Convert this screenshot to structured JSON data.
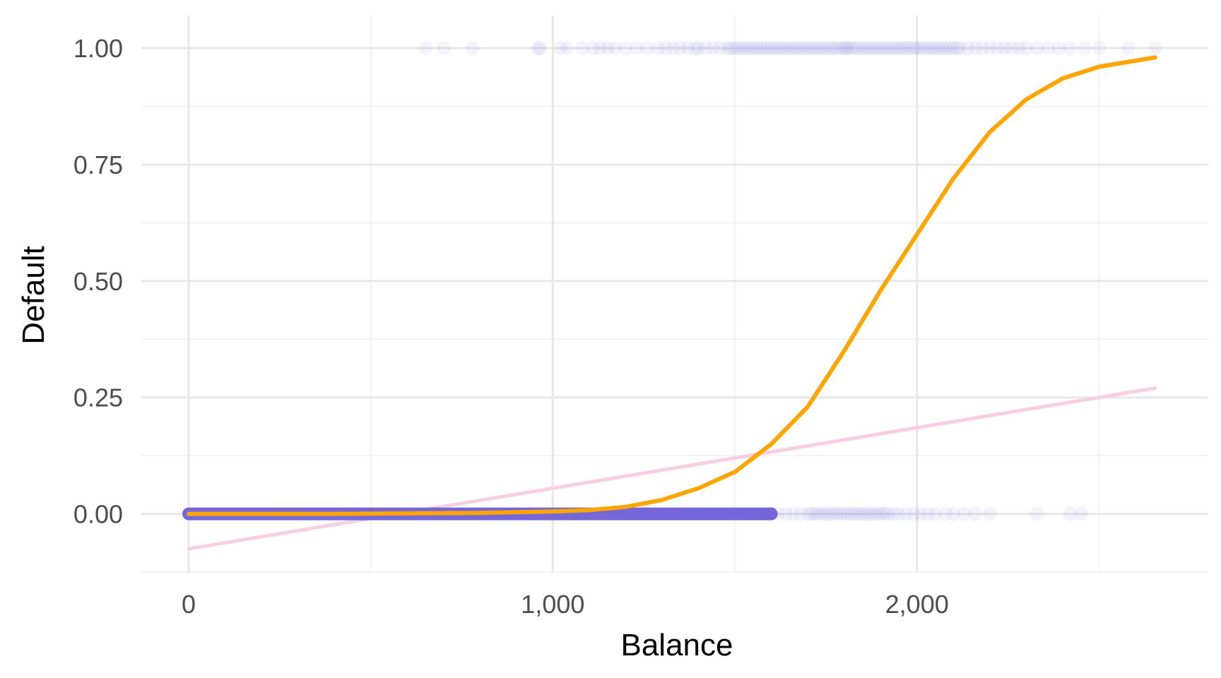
{
  "chart_data": {
    "type": "scatter",
    "title": "",
    "xlabel": "Balance",
    "ylabel": "Default",
    "xlim": [
      -130,
      2800
    ],
    "ylim": [
      -0.125,
      1.07
    ],
    "x_ticks": [
      0,
      1000,
      2000
    ],
    "x_tick_labels": [
      "0",
      "1,000",
      "2,000"
    ],
    "x_minor_ticks": [
      500,
      1500,
      2500
    ],
    "y_ticks": [
      0,
      0.25,
      0.5,
      0.75,
      1.0
    ],
    "y_tick_labels": [
      "0.00",
      "0.25",
      "0.50",
      "0.75",
      "1.00"
    ],
    "y_minor_ticks": [
      -0.125,
      0.125,
      0.375,
      0.625,
      0.875
    ],
    "grid": true,
    "legend": "none",
    "series": [
      {
        "kind": "points",
        "color": "#7566d9",
        "opacity": 0.08,
        "points_default_1": [
          652,
          700,
          780,
          960,
          965,
          1020,
          1040,
          1080,
          1110,
          1130,
          1150,
          1170,
          1200,
          1230,
          1260,
          1290,
          1310,
          1330,
          1350,
          1370,
          1390,
          1400,
          1420,
          1440,
          1460,
          1480,
          1490,
          1500,
          1510,
          1520,
          1530,
          1540,
          1550,
          1560,
          1570,
          1580,
          1590,
          1600,
          1610,
          1620,
          1630,
          1640,
          1650,
          1660,
          1670,
          1680,
          1690,
          1700,
          1710,
          1720,
          1730,
          1740,
          1750,
          1760,
          1770,
          1780,
          1790,
          1800,
          1805,
          1810,
          1820,
          1830,
          1840,
          1850,
          1860,
          1870,
          1880,
          1890,
          1900,
          1910,
          1920,
          1930,
          1940,
          1950,
          1960,
          1970,
          1980,
          1990,
          2000,
          2010,
          2020,
          2030,
          2040,
          2050,
          2060,
          2070,
          2080,
          2090,
          2100,
          2110,
          2120,
          2140,
          2160,
          2180,
          2200,
          2220,
          2240,
          2260,
          2280,
          2300,
          2330,
          2360,
          2390,
          2420,
          2460,
          2500,
          2580,
          2654
        ],
        "points_default_0_spread": [
          1600,
          1620,
          1640,
          1660,
          1680,
          1700,
          1710,
          1720,
          1730,
          1740,
          1750,
          1760,
          1770,
          1780,
          1790,
          1800,
          1810,
          1820,
          1830,
          1840,
          1850,
          1860,
          1870,
          1880,
          1890,
          1900,
          1910,
          1920,
          1935,
          1950,
          1970,
          1990,
          2010,
          2030,
          2050,
          2080,
          2100,
          2130,
          2160,
          2200,
          2330,
          2420,
          2450
        ],
        "dense_default_0_range": [
          0,
          1600
        ]
      },
      {
        "kind": "line",
        "model": "logistic",
        "color": "#ffa500",
        "x": [
          0,
          200,
          400,
          600,
          800,
          1000,
          1100,
          1200,
          1300,
          1400,
          1500,
          1600,
          1700,
          1800,
          1900,
          2000,
          2100,
          2200,
          2300,
          2400,
          2500,
          2654
        ],
        "y": [
          0.0,
          0.0,
          0.0,
          0.001,
          0.002,
          0.005,
          0.008,
          0.015,
          0.03,
          0.055,
          0.09,
          0.15,
          0.23,
          0.35,
          0.48,
          0.6,
          0.72,
          0.82,
          0.89,
          0.935,
          0.96,
          0.98
        ]
      },
      {
        "kind": "line",
        "model": "linear",
        "color": "#f7cfe0",
        "x": [
          0,
          2654
        ],
        "y": [
          -0.075,
          0.27
        ]
      }
    ]
  }
}
